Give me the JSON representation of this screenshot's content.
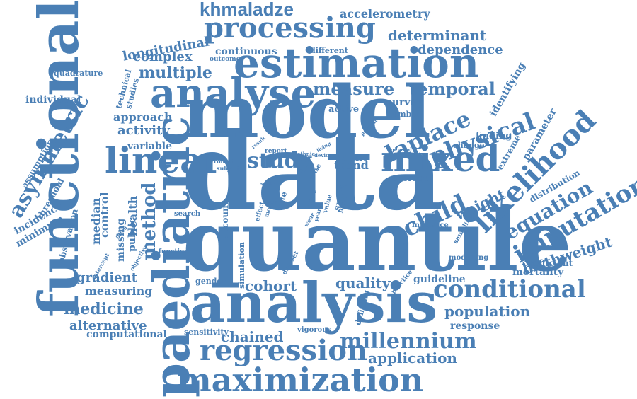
{
  "color": "#4a7fb5",
  "words": [
    {
      "id": "data",
      "text": "data",
      "size": 150,
      "rot": 0,
      "font": "serif"
    },
    {
      "id": "quantile",
      "text": "quantile",
      "size": 118,
      "rot": 0,
      "font": "serif"
    },
    {
      "id": "model",
      "text": "model",
      "size": 102,
      "rot": 0,
      "font": "serif"
    },
    {
      "id": "analysis",
      "text": "analysis",
      "size": 78,
      "rot": 0,
      "font": "serif"
    },
    {
      "id": "functional",
      "text": "functional",
      "size": 78,
      "rot": -90,
      "font": "serif"
    },
    {
      "id": "paediatric",
      "text": "paediatric",
      "size": 70,
      "rot": -90,
      "font": "serif"
    },
    {
      "id": "estimation",
      "text": "estimation",
      "size": 58,
      "rot": 0,
      "font": "serif"
    },
    {
      "id": "analyse",
      "text": "analyse",
      "size": 56,
      "rot": 0,
      "font": "serif"
    },
    {
      "id": "linear",
      "text": "linear",
      "size": 50,
      "rot": 0,
      "font": "serif"
    },
    {
      "id": "mixed",
      "text": "mixed",
      "size": 50,
      "rot": 0,
      "font": "serif"
    },
    {
      "id": "maximization",
      "text": "maximization",
      "size": 46,
      "rot": 0,
      "font": "serif"
    },
    {
      "id": "processing",
      "text": "processing",
      "size": 40,
      "rot": 0,
      "font": "serif"
    },
    {
      "id": "regression",
      "text": "regression",
      "size": 40,
      "rot": 0,
      "font": "serif"
    },
    {
      "id": "likelihood",
      "text": "likelihood",
      "size": 40,
      "rot": -45,
      "font": "serif"
    },
    {
      "id": "imputation",
      "text": "imputation",
      "size": 34,
      "rot": -30,
      "font": "serif"
    },
    {
      "id": "physical",
      "text": "physical",
      "size": 34,
      "rot": -20,
      "font": "serif"
    },
    {
      "id": "conditional",
      "text": "conditional",
      "size": 34,
      "rot": 0,
      "font": "serif"
    },
    {
      "id": "millennium",
      "text": "millennium",
      "size": 30,
      "rot": 0,
      "font": "serif"
    },
    {
      "id": "laplace",
      "text": "laplace",
      "size": 32,
      "rot": -25,
      "font": "serif"
    },
    {
      "id": "child",
      "text": "child",
      "size": 34,
      "rot": -25,
      "font": "serif"
    },
    {
      "id": "study",
      "text": "study",
      "size": 30,
      "rot": 0,
      "font": "serif"
    },
    {
      "id": "asymmetric",
      "text": "asymmetric",
      "size": 30,
      "rot": -60,
      "font": "serif"
    },
    {
      "id": "khmaladze",
      "text": "khmaladze",
      "size": 26,
      "rot": 0,
      "font": "sans"
    },
    {
      "id": "measure",
      "text": "measure",
      "size": 24,
      "rot": 0,
      "font": "serif"
    },
    {
      "id": "temporal",
      "text": "temporal",
      "size": 24,
      "rot": 0,
      "font": "serif"
    },
    {
      "id": "equation",
      "text": "equation",
      "size": 28,
      "rot": -30,
      "font": "serif"
    },
    {
      "id": "method",
      "text": "method",
      "size": 26,
      "rot": -90,
      "font": "serif"
    },
    {
      "id": "multiple",
      "text": "multiple",
      "size": 22,
      "rot": 0,
      "font": "serif"
    },
    {
      "id": "determinant",
      "text": "determinant",
      "size": 20,
      "rot": 0,
      "font": "serif"
    },
    {
      "id": "medicine",
      "text": "medicine",
      "size": 22,
      "rot": 0,
      "font": "serif"
    },
    {
      "id": "population",
      "text": "population",
      "size": 20,
      "rot": 0,
      "font": "serif"
    },
    {
      "id": "application",
      "text": "application",
      "size": 20,
      "rot": 0,
      "font": "serif"
    },
    {
      "id": "chained",
      "text": "chained",
      "size": 20,
      "rot": 0,
      "font": "serif"
    },
    {
      "id": "cohort",
      "text": "cohort",
      "size": 20,
      "rot": 0,
      "font": "serif"
    },
    {
      "id": "quality",
      "text": "quality",
      "size": 20,
      "rot": 0,
      "font": "serif"
    },
    {
      "id": "activity",
      "text": "activity",
      "size": 18,
      "rot": 0,
      "font": "serif"
    },
    {
      "id": "gradient",
      "text": "gradient",
      "size": 18,
      "rot": 0,
      "font": "serif"
    },
    {
      "id": "alternative",
      "text": "alternative",
      "size": 18,
      "rot": 0,
      "font": "serif"
    },
    {
      "id": "weight",
      "text": "weight",
      "size": 20,
      "rot": -25,
      "font": "serif"
    },
    {
      "id": "birthweight",
      "text": "birthweight",
      "size": 20,
      "rot": -18,
      "font": "serif"
    },
    {
      "id": "dependence",
      "text": "dependence",
      "size": 18,
      "rot": 0,
      "font": "serif"
    },
    {
      "id": "longitudinal",
      "text": "longitudinal",
      "size": 18,
      "rot": -10,
      "font": "serif"
    },
    {
      "id": "complex",
      "text": "complex",
      "size": 18,
      "rot": 0,
      "font": "serif"
    },
    {
      "id": "accelerometry",
      "text": "accelerometry",
      "size": 16,
      "rot": 0,
      "font": "serif"
    },
    {
      "id": "approach",
      "text": "approach",
      "size": 16,
      "rot": 0,
      "font": "serif"
    },
    {
      "id": "measuring",
      "text": "measuring",
      "size": 16,
      "rot": 0,
      "font": "serif"
    },
    {
      "id": "continuous",
      "text": "continuous",
      "size": 14,
      "rot": 0,
      "font": "serif"
    },
    {
      "id": "computational",
      "text": "computational",
      "size": 14,
      "rot": 0,
      "font": "serif"
    },
    {
      "id": "individual",
      "text": "individual",
      "size": 14,
      "rot": 0,
      "font": "serif"
    },
    {
      "id": "variable",
      "text": "variable",
      "size": 14,
      "rot": 0,
      "font": "serif"
    },
    {
      "id": "control",
      "text": "control",
      "size": 16,
      "rot": -90,
      "font": "serif"
    },
    {
      "id": "health",
      "text": "health",
      "size": 16,
      "rot": -90,
      "font": "serif"
    },
    {
      "id": "median",
      "text": "median",
      "size": 16,
      "rot": -90,
      "font": "serif"
    },
    {
      "id": "missing",
      "text": "missing",
      "size": 14,
      "rot": -90,
      "font": "serif"
    },
    {
      "id": "public",
      "text": "public",
      "size": 14,
      "rot": -90,
      "font": "serif"
    },
    {
      "id": "incidence",
      "text": "incidence",
      "size": 14,
      "rot": -30,
      "font": "serif"
    },
    {
      "id": "minimum",
      "text": "minimum",
      "size": 14,
      "rot": -30,
      "font": "serif"
    },
    {
      "id": "threshold",
      "text": "threshold",
      "size": 12,
      "rot": -60,
      "font": "serif"
    },
    {
      "id": "assumption",
      "text": "assumption",
      "size": 12,
      "rot": -60,
      "font": "serif"
    },
    {
      "id": "observation",
      "text": "observation",
      "size": 12,
      "rot": -75,
      "font": "serif"
    },
    {
      "id": "mortality",
      "text": "mortality",
      "size": 14,
      "rot": 0,
      "font": "serif"
    },
    {
      "id": "coefficient",
      "text": "coefficient",
      "size": 12,
      "rot": 0,
      "font": "serif"
    },
    {
      "id": "guideline",
      "text": "guideline",
      "size": 14,
      "rot": 0,
      "font": "serif"
    },
    {
      "id": "response",
      "text": "response",
      "size": 14,
      "rot": 0,
      "font": "serif"
    },
    {
      "id": "identifying",
      "text": "identifying",
      "size": 14,
      "rot": -60,
      "font": "serif"
    },
    {
      "id": "parameter",
      "text": "parameter",
      "size": 14,
      "rot": -60,
      "font": "serif"
    },
    {
      "id": "extreme",
      "text": "extreme",
      "size": 12,
      "rot": -60,
      "font": "serif"
    },
    {
      "id": "distribution",
      "text": "distribution",
      "size": 12,
      "rot": -30,
      "font": "serif"
    },
    {
      "id": "survey",
      "text": "survey",
      "size": 14,
      "rot": 0,
      "font": "serif"
    },
    {
      "id": "finding",
      "text": "finding",
      "size": 13,
      "rot": 0,
      "font": "serif"
    },
    {
      "id": "active",
      "text": "active",
      "size": 13,
      "rot": 0,
      "font": "serif"
    },
    {
      "id": "trend",
      "text": "trend",
      "size": 16,
      "rot": 0,
      "font": "serif"
    },
    {
      "id": "count",
      "text": "count",
      "size": 14,
      "rot": 0,
      "font": "serif"
    },
    {
      "id": "average",
      "text": "average",
      "size": 12,
      "rot": 0,
      "font": "serif"
    },
    {
      "id": "number",
      "text": "number",
      "size": 11,
      "rot": 0,
      "font": "serif"
    },
    {
      "id": "change",
      "text": "change",
      "size": 11,
      "rot": 0,
      "font": "serif"
    },
    {
      "id": "different",
      "text": "different",
      "size": 11,
      "rot": 0,
      "font": "serif"
    },
    {
      "id": "outcome",
      "text": "outcome",
      "size": 9,
      "rot": 0,
      "font": "serif"
    },
    {
      "id": "quadrature",
      "text": "quadrature",
      "size": 11,
      "rot": 0,
      "font": "serif"
    },
    {
      "id": "technical",
      "text": "technical",
      "size": 11,
      "rot": -75,
      "font": "serif"
    },
    {
      "id": "studies",
      "text": "studies",
      "size": 11,
      "rot": -75,
      "font": "serif"
    },
    {
      "id": "sensitivity",
      "text": "sensitivity",
      "size": 11,
      "rot": 0,
      "font": "serif"
    },
    {
      "id": "vigorous",
      "text": "vigorous",
      "size": 10,
      "rot": 0,
      "font": "serif"
    },
    {
      "id": "gender",
      "text": "gender",
      "size": 11,
      "rot": 0,
      "font": "serif"
    },
    {
      "id": "search",
      "text": "search",
      "size": 10,
      "rot": 0,
      "font": "serif"
    },
    {
      "id": "function",
      "text": "function",
      "size": 9,
      "rot": 0,
      "font": "serif"
    },
    {
      "id": "simulation",
      "text": "simulation",
      "size": 11,
      "rot": -90,
      "font": "serif"
    },
    {
      "id": "account",
      "text": "account",
      "size": 12,
      "rot": -90,
      "font": "serif"
    },
    {
      "id": "influence",
      "text": "influence",
      "size": 10,
      "rot": 0,
      "font": "serif"
    },
    {
      "id": "sampling",
      "text": "sampling",
      "size": 9,
      "rot": -60,
      "font": "serif"
    },
    {
      "id": "modelling",
      "text": "modelling",
      "size": 10,
      "rot": 0,
      "font": "serif"
    },
    {
      "id": "design",
      "text": "design",
      "size": 10,
      "rot": -75,
      "font": "serif"
    },
    {
      "id": "defining",
      "text": "defining",
      "size": 11,
      "rot": -75,
      "font": "serif"
    },
    {
      "id": "practice",
      "text": "practice",
      "size": 9,
      "rot": -50,
      "font": "serif"
    },
    {
      "id": "dataset",
      "text": "dataset",
      "size": 9,
      "rot": -60,
      "font": "serif"
    },
    {
      "id": "report",
      "text": "report",
      "size": 9,
      "rot": 0,
      "font": "serif"
    },
    {
      "id": "robust",
      "text": "robust",
      "size": 8,
      "rot": 0,
      "font": "serif"
    },
    {
      "id": "subject",
      "text": "subject",
      "size": 8,
      "rot": 0,
      "font": "serif"
    },
    {
      "id": "ethnic",
      "text": "ethnic",
      "size": 7,
      "rot": 0,
      "font": "serif"
    },
    {
      "id": "device",
      "text": "device",
      "size": 7,
      "rot": 0,
      "font": "serif"
    },
    {
      "id": "percent",
      "text": "percent",
      "size": 7,
      "rot": -45,
      "font": "serif"
    },
    {
      "id": "general",
      "text": "general",
      "size": 7,
      "rot": 0,
      "font": "serif"
    },
    {
      "id": "sport",
      "text": "sport",
      "size": 13,
      "rot": -75,
      "font": "serif"
    },
    {
      "id": "test",
      "text": "test",
      "size": 11,
      "rot": -75,
      "font": "serif"
    },
    {
      "id": "rate",
      "text": "rate",
      "size": 11,
      "rot": -75,
      "font": "serif"
    },
    {
      "id": "level",
      "text": "level",
      "size": 9,
      "rot": -75,
      "font": "serif"
    },
    {
      "id": "value",
      "text": "value",
      "size": 9,
      "rot": -75,
      "font": "serif"
    },
    {
      "id": "year",
      "text": "year",
      "size": 8,
      "rot": -75,
      "font": "serif"
    },
    {
      "id": "wear",
      "text": "wear",
      "size": 8,
      "rot": -60,
      "font": "serif"
    },
    {
      "id": "more",
      "text": "more",
      "size": 8,
      "rot": -75,
      "font": "serif"
    },
    {
      "id": "effect",
      "text": "effect",
      "size": 9,
      "rot": -75,
      "font": "serif"
    },
    {
      "id": "issue",
      "text": "issue",
      "size": 7,
      "rot": 0,
      "font": "serif"
    },
    {
      "id": "scale",
      "text": "scale",
      "size": 7,
      "rot": 0,
      "font": "serif"
    },
    {
      "id": "arise",
      "text": "arise",
      "size": 9,
      "rot": -60,
      "font": "serif"
    },
    {
      "id": "living",
      "text": "living",
      "size": 7,
      "rot": -30,
      "font": "serif"
    },
    {
      "id": "result",
      "text": "result",
      "size": 7,
      "rot": -40,
      "font": "serif"
    },
    {
      "id": "intercept",
      "text": "intercept",
      "size": 8,
      "rot": -60,
      "font": "serif"
    },
    {
      "id": "objective",
      "text": "objective",
      "size": 8,
      "rot": -60,
      "font": "serif"
    },
    {
      "id": "fitted",
      "text": "fitted",
      "size": 7,
      "rot": -50,
      "font": "serif"
    }
  ]
}
